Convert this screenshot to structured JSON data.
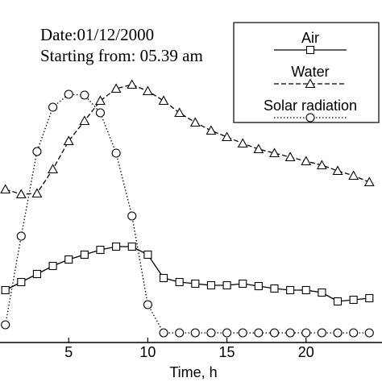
{
  "chart_data": {
    "type": "line",
    "annotations": [
      "Date:01/12/2000",
      "Starting from: 05.39 am"
    ],
    "xlabel": "Time, h",
    "x": [
      1,
      2,
      3,
      4,
      5,
      6,
      7,
      8,
      9,
      10,
      11,
      12,
      13,
      14,
      15,
      16,
      17,
      18,
      19,
      20,
      21,
      22,
      23,
      24
    ],
    "xlim": [
      0.66,
      24.8
    ],
    "xticks": [
      5,
      10,
      15,
      20
    ],
    "ylim": [
      0,
      405
    ],
    "series": [
      {
        "name": "Air",
        "color": "#000000",
        "marker": "square",
        "dash": "solid",
        "values": [
          65,
          75,
          85,
          95,
          103,
          109,
          115,
          119,
          119,
          109,
          80,
          75,
          73,
          71,
          71,
          73,
          70,
          67,
          65,
          65,
          62,
          51,
          53,
          55
        ]
      },
      {
        "name": "Water",
        "color": "#000000",
        "marker": "triangle",
        "dash": "dashed",
        "values": [
          190,
          184,
          185,
          215,
          250,
          275,
          300,
          315,
          320,
          312,
          300,
          285,
          273,
          263,
          255,
          247,
          240,
          235,
          230,
          225,
          220,
          213,
          207,
          199
        ]
      },
      {
        "name": "Solar radiation",
        "color": "#000000",
        "marker": "circle",
        "dash": "dotted",
        "values": [
          22,
          132,
          237,
          292,
          308,
          307,
          285,
          235,
          157,
          47,
          12,
          12,
          12,
          12,
          12,
          12,
          12,
          12,
          12,
          12,
          12,
          12,
          12,
          12
        ]
      }
    ]
  }
}
